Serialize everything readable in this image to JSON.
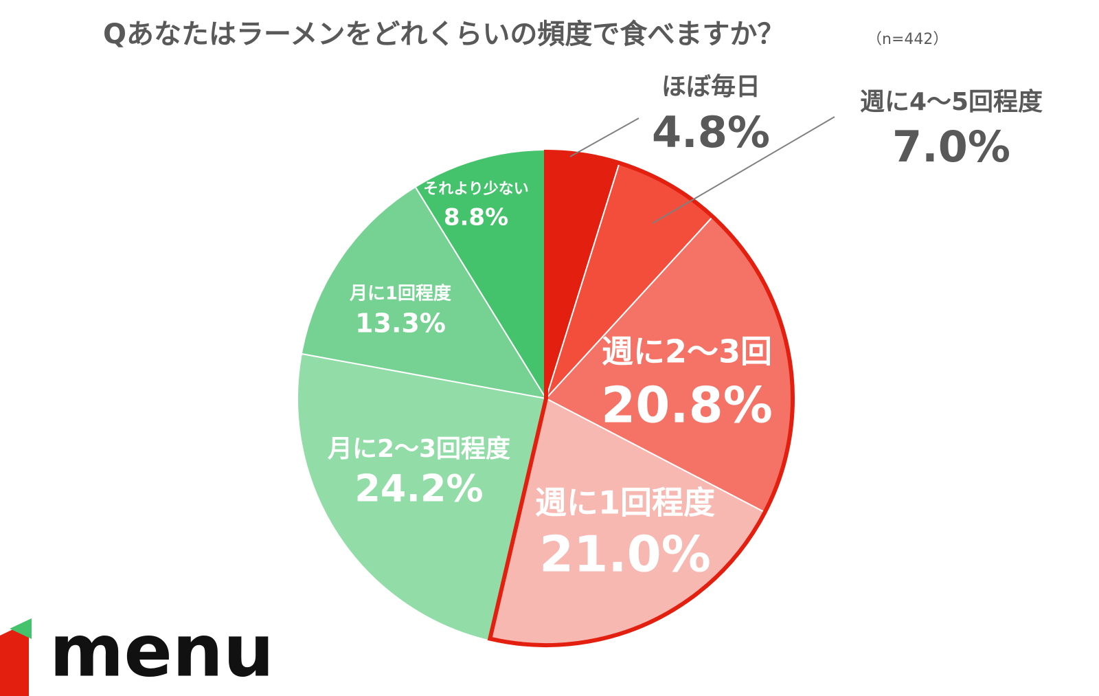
{
  "chart_data": {
    "type": "pie",
    "title": "Qあなたはラーメンをどれくらいの頻度で食べますか？",
    "subtitle": "（n=442）",
    "categories": [
      "ほぼ毎日",
      "週に4～5回程度",
      "週に2～3回",
      "週に1回程度",
      "月に2～3回程度",
      "月に1回程度",
      "それより少ない"
    ],
    "values": [
      4.8,
      7.0,
      20.8,
      21.0,
      24.2,
      13.3,
      8.8
    ],
    "value_labels": [
      "4.8%",
      "7.0%",
      "20.8%",
      "21.0%",
      "24.2%",
      "13.3%",
      "8.8%"
    ],
    "colors": [
      "#e3200f",
      "#f34e3c",
      "#f47366",
      "#f8b8b2",
      "#92dca8",
      "#76d292",
      "#45c36c"
    ]
  },
  "logo": "menu"
}
